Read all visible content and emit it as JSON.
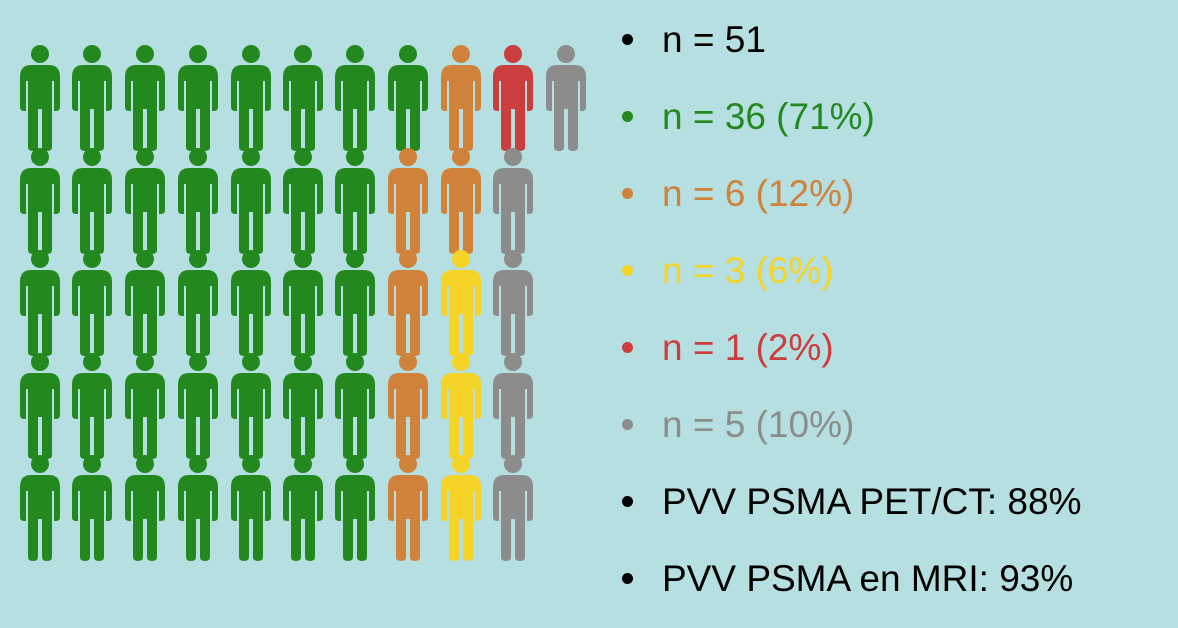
{
  "bullets": [
    {
      "text": "n = 51",
      "color": "#000000"
    },
    {
      "text": "n = 36 (71%)",
      "color": "#23891f"
    },
    {
      "text": "n = 6 (12%)",
      "color": "#d0813a"
    },
    {
      "text": "n = 3 (6%)",
      "color": "#f5d327"
    },
    {
      "text": "n = 1 (2%)",
      "color": "#cc3d3d"
    },
    {
      "text": "n = 5 (10%)",
      "color": "#8c8c8c"
    },
    {
      "text": "PVV PSMA PET/CT: 88%",
      "color": "#000000"
    },
    {
      "text": "PVV PSMA en MRI: 93%",
      "color": "#000000"
    }
  ]
}
